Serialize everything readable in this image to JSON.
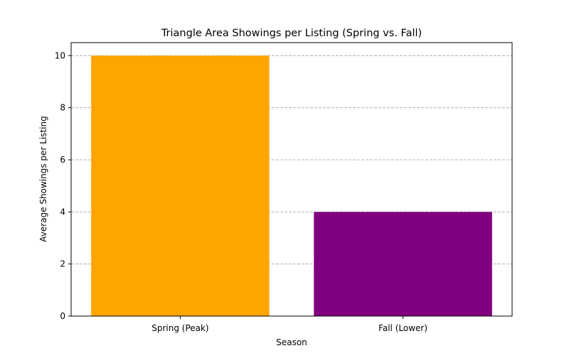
{
  "chart_data": {
    "type": "bar",
    "title": "Triangle Area Showings per Listing (Spring vs. Fall)",
    "xlabel": "Season",
    "ylabel": "Average Showings per Listing",
    "categories": [
      "Spring (Peak)",
      "Fall (Lower)"
    ],
    "values": [
      10,
      4
    ],
    "colors": [
      "#FFA500",
      "#800080"
    ],
    "ylim": [
      0,
      10.5
    ],
    "yticks": [
      0,
      2,
      4,
      6,
      8,
      10
    ],
    "grid": {
      "axis": "y",
      "style": "dashed",
      "color": "#b0b0b0"
    }
  }
}
